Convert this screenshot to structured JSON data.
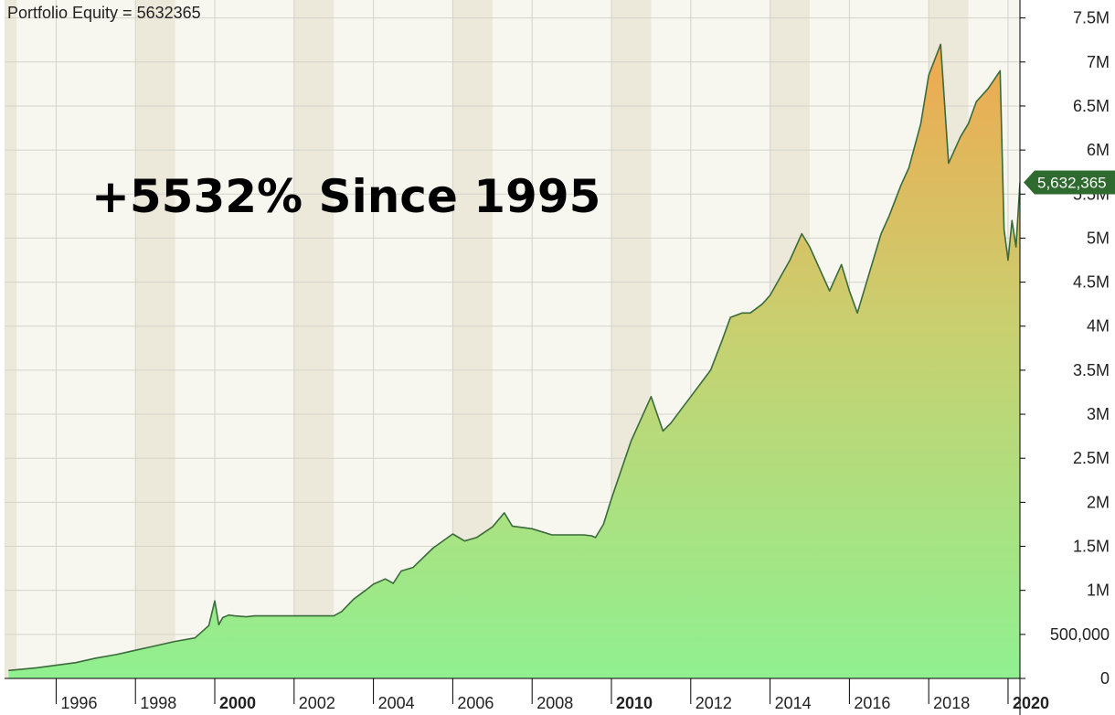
{
  "header": {
    "label": "Portfolio Equity = 5632365"
  },
  "annotation": {
    "text": "+5532% Since 1995"
  },
  "last_value": {
    "label": "5,632,365",
    "color": "#2f6b2f"
  },
  "colors": {
    "line": "#3a6b3a",
    "fill_top": "#f0a850",
    "fill_mid": "#c8d070",
    "fill_bottom": "#90f090",
    "band_dark": "#ece8da",
    "band_light": "#f7f6ef",
    "grid": "#d4d4cc",
    "axis": "#000000"
  },
  "chart_data": {
    "type": "area",
    "title": "Portfolio Equity = 5632365",
    "xlabel": "",
    "ylabel": "",
    "grid": true,
    "legend": "none",
    "xlim": [
      1994.7,
      2020.3
    ],
    "ylim": [
      0,
      7600000
    ],
    "x_ticks": [
      {
        "value": 1996,
        "label": "1996",
        "bold": false
      },
      {
        "value": 1998,
        "label": "1998",
        "bold": false
      },
      {
        "value": 2000,
        "label": "2000",
        "bold": true
      },
      {
        "value": 2002,
        "label": "2002",
        "bold": false
      },
      {
        "value": 2004,
        "label": "2004",
        "bold": false
      },
      {
        "value": 2006,
        "label": "2006",
        "bold": false
      },
      {
        "value": 2008,
        "label": "2008",
        "bold": false
      },
      {
        "value": 2010,
        "label": "2010",
        "bold": true
      },
      {
        "value": 2012,
        "label": "2012",
        "bold": false
      },
      {
        "value": 2014,
        "label": "2014",
        "bold": false
      },
      {
        "value": 2016,
        "label": "2016",
        "bold": false
      },
      {
        "value": 2018,
        "label": "2018",
        "bold": false
      },
      {
        "value": 2020,
        "label": "2020",
        "bold": true
      }
    ],
    "y_ticks": [
      {
        "value": 0,
        "label": "0"
      },
      {
        "value": 500000,
        "label": "500,000"
      },
      {
        "value": 1000000,
        "label": "1M"
      },
      {
        "value": 1500000,
        "label": "1.5M"
      },
      {
        "value": 2000000,
        "label": "2M"
      },
      {
        "value": 2500000,
        "label": "2.5M"
      },
      {
        "value": 3000000,
        "label": "3M"
      },
      {
        "value": 3500000,
        "label": "3.5M"
      },
      {
        "value": 4000000,
        "label": "4M"
      },
      {
        "value": 4500000,
        "label": "4.5M"
      },
      {
        "value": 5000000,
        "label": "5M"
      },
      {
        "value": 5500000,
        "label": "5.5M"
      },
      {
        "value": 6000000,
        "label": "6M"
      },
      {
        "value": 6500000,
        "label": "6.5M"
      },
      {
        "value": 7000000,
        "label": "7M"
      },
      {
        "value": 7500000,
        "label": "7.5M"
      }
    ],
    "series": [
      {
        "x": [
          1994.8,
          1995.5,
          1996.0,
          1996.5,
          1997.0,
          1997.5,
          1998.0,
          1998.5,
          1999.0,
          1999.5,
          1999.85,
          2000.0,
          2000.1,
          2000.2,
          2000.35,
          2000.5,
          2000.8,
          2001.0,
          2001.5,
          2002.0,
          2002.5,
          2003.0,
          2003.2,
          2003.5,
          2003.8,
          2004.0,
          2004.3,
          2004.5,
          2004.7,
          2005.0,
          2005.5,
          2006.0,
          2006.3,
          2006.6,
          2007.0,
          2007.3,
          2007.5,
          2008.0,
          2008.5,
          2009.0,
          2009.3,
          2009.5,
          2009.6,
          2009.8,
          2010.0,
          2010.5,
          2011.0,
          2011.3,
          2011.5,
          2011.8,
          2012.0,
          2012.5,
          2012.8,
          2013.0,
          2013.3,
          2013.5,
          2013.8,
          2014.0,
          2014.5,
          2014.8,
          2015.0,
          2015.3,
          2015.5,
          2015.8,
          2016.0,
          2016.2,
          2016.5,
          2016.8,
          2017.0,
          2017.3,
          2017.5,
          2017.8,
          2018.0,
          2018.3,
          2018.5,
          2018.8,
          2019.0,
          2019.2,
          2019.5,
          2019.8,
          2019.9,
          2020.0,
          2020.1,
          2020.2,
          2020.3
        ],
        "y": [
          90000,
          120000,
          150000,
          180000,
          230000,
          270000,
          320000,
          370000,
          420000,
          460000,
          600000,
          880000,
          610000,
          690000,
          720000,
          710000,
          700000,
          710000,
          710000,
          710000,
          710000,
          710000,
          760000,
          900000,
          1000000,
          1070000,
          1130000,
          1080000,
          1220000,
          1260000,
          1480000,
          1640000,
          1560000,
          1600000,
          1720000,
          1880000,
          1730000,
          1700000,
          1630000,
          1630000,
          1630000,
          1620000,
          1600000,
          1750000,
          2040000,
          2700000,
          3200000,
          2810000,
          2900000,
          3080000,
          3200000,
          3500000,
          3850000,
          4100000,
          4150000,
          4150000,
          4250000,
          4350000,
          4750000,
          5050000,
          4900000,
          4600000,
          4400000,
          4700000,
          4400000,
          4150000,
          4600000,
          5050000,
          5250000,
          5600000,
          5800000,
          6300000,
          6850000,
          7200000,
          5850000,
          6150000,
          6300000,
          6550000,
          6700000,
          6900000,
          5100000,
          4750000,
          5200000,
          4900000,
          5632365
        ]
      }
    ]
  }
}
